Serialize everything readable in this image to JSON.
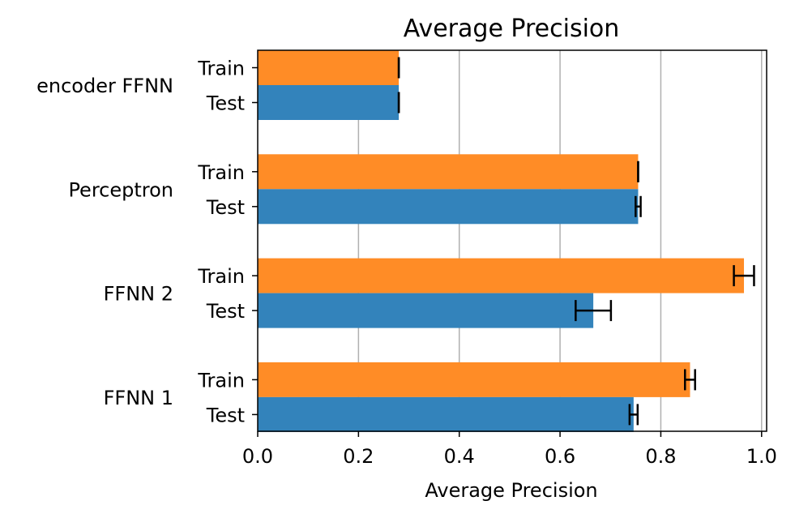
{
  "chart_data": {
    "type": "bar",
    "orientation": "horizontal",
    "title": "Average Precision",
    "xlabel": "Average Precision",
    "ylabel": "",
    "xlim": [
      0,
      1.01
    ],
    "xticks": [
      0.0,
      0.2,
      0.4,
      0.6,
      0.8,
      1.0
    ],
    "xtick_labels": [
      "0.0",
      "0.2",
      "0.4",
      "0.6",
      "0.8",
      "1.0"
    ],
    "grid": "vertical",
    "legend": "none",
    "groups": [
      {
        "name": "encoder FFNN",
        "bars": [
          {
            "label": "Train",
            "value": 0.28,
            "error": 0.0,
            "color": "#ff8c26"
          },
          {
            "label": "Test",
            "value": 0.28,
            "error": 0.0,
            "color": "#3383bb"
          }
        ]
      },
      {
        "name": "Perceptron",
        "bars": [
          {
            "label": "Train",
            "value": 0.755,
            "error": 0.0,
            "color": "#ff8c26"
          },
          {
            "label": "Test",
            "value": 0.755,
            "error": 0.005,
            "color": "#3383bb"
          }
        ]
      },
      {
        "name": "FFNN 2",
        "bars": [
          {
            "label": "Train",
            "value": 0.965,
            "error": 0.02,
            "color": "#ff8c26"
          },
          {
            "label": "Test",
            "value": 0.666,
            "error": 0.035,
            "color": "#3383bb"
          }
        ]
      },
      {
        "name": "FFNN 1",
        "bars": [
          {
            "label": "Train",
            "value": 0.858,
            "error": 0.01,
            "color": "#ff8c26"
          },
          {
            "label": "Test",
            "value": 0.746,
            "error": 0.008,
            "color": "#3383bb"
          }
        ]
      }
    ]
  }
}
